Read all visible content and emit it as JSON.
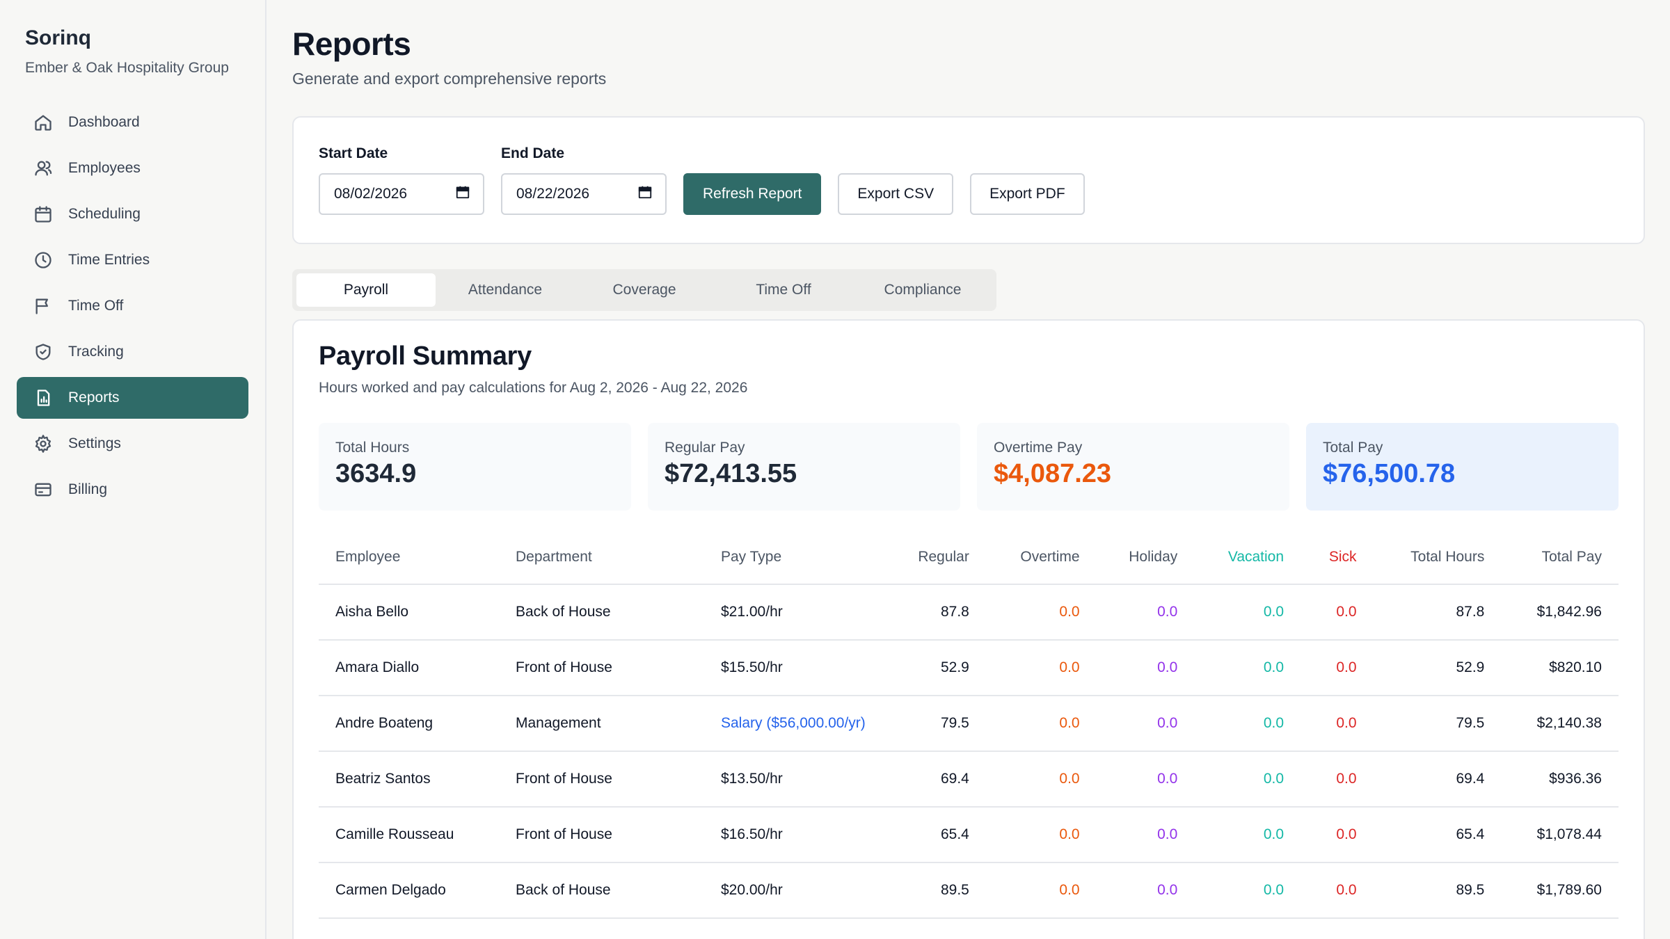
{
  "brand": {
    "name": "Sorinq",
    "org": "Ember & Oak Hospitality Group"
  },
  "nav": [
    {
      "label": "Dashboard",
      "icon": "home-icon"
    },
    {
      "label": "Employees",
      "icon": "users-icon"
    },
    {
      "label": "Scheduling",
      "icon": "calendar-icon"
    },
    {
      "label": "Time Entries",
      "icon": "clock-icon"
    },
    {
      "label": "Time Off",
      "icon": "flag-icon"
    },
    {
      "label": "Tracking",
      "icon": "shield-icon"
    },
    {
      "label": "Reports",
      "icon": "report-icon",
      "active": true
    },
    {
      "label": "Settings",
      "icon": "gear-icon"
    },
    {
      "label": "Billing",
      "icon": "credit-card-icon"
    }
  ],
  "page": {
    "title": "Reports",
    "subtitle": "Generate and export comprehensive reports"
  },
  "filters": {
    "start_label": "Start Date",
    "start_value": "08/02/2026",
    "end_label": "End Date",
    "end_value": "08/22/2026",
    "refresh_label": "Refresh Report",
    "export_csv_label": "Export CSV",
    "export_pdf_label": "Export PDF"
  },
  "tabs": [
    {
      "label": "Payroll",
      "active": true
    },
    {
      "label": "Attendance"
    },
    {
      "label": "Coverage"
    },
    {
      "label": "Time Off"
    },
    {
      "label": "Compliance"
    }
  ],
  "report": {
    "title": "Payroll Summary",
    "subtitle": "Hours worked and pay calculations for Aug 2, 2026 - Aug 22, 2026",
    "stats": [
      {
        "label": "Total Hours",
        "value": "3634.9"
      },
      {
        "label": "Regular Pay",
        "value": "$72,413.55"
      },
      {
        "label": "Overtime Pay",
        "value": "$4,087.23"
      },
      {
        "label": "Total Pay",
        "value": "$76,500.78"
      }
    ],
    "columns": [
      "Employee",
      "Department",
      "Pay Type",
      "Regular",
      "Overtime",
      "Holiday",
      "Vacation",
      "Sick",
      "Total Hours",
      "Total Pay"
    ],
    "rows": [
      [
        "Aisha Bello",
        "Back of House",
        "$21.00/hr",
        "87.8",
        "0.0",
        "0.0",
        "0.0",
        "0.0",
        "87.8",
        "$1,842.96"
      ],
      [
        "Amara Diallo",
        "Front of House",
        "$15.50/hr",
        "52.9",
        "0.0",
        "0.0",
        "0.0",
        "0.0",
        "52.9",
        "$820.10"
      ],
      [
        "Andre Boateng",
        "Management",
        "Salary ($56,000.00/yr)",
        "79.5",
        "0.0",
        "0.0",
        "0.0",
        "0.0",
        "79.5",
        "$2,140.38"
      ],
      [
        "Beatriz Santos",
        "Front of House",
        "$13.50/hr",
        "69.4",
        "0.0",
        "0.0",
        "0.0",
        "0.0",
        "69.4",
        "$936.36"
      ],
      [
        "Camille Rousseau",
        "Front of House",
        "$16.50/hr",
        "65.4",
        "0.0",
        "0.0",
        "0.0",
        "0.0",
        "65.4",
        "$1,078.44"
      ],
      [
        "Carmen Delgado",
        "Back of House",
        "$20.00/hr",
        "89.5",
        "0.0",
        "0.0",
        "0.0",
        "0.0",
        "89.5",
        "$1,789.60"
      ]
    ]
  },
  "colors": {
    "accent": "#2f6b68",
    "overtime": "#ea580c",
    "holiday": "#9333ea",
    "vacation": "#14b8a6",
    "sick": "#dc2626",
    "total_pay": "#2563eb"
  }
}
